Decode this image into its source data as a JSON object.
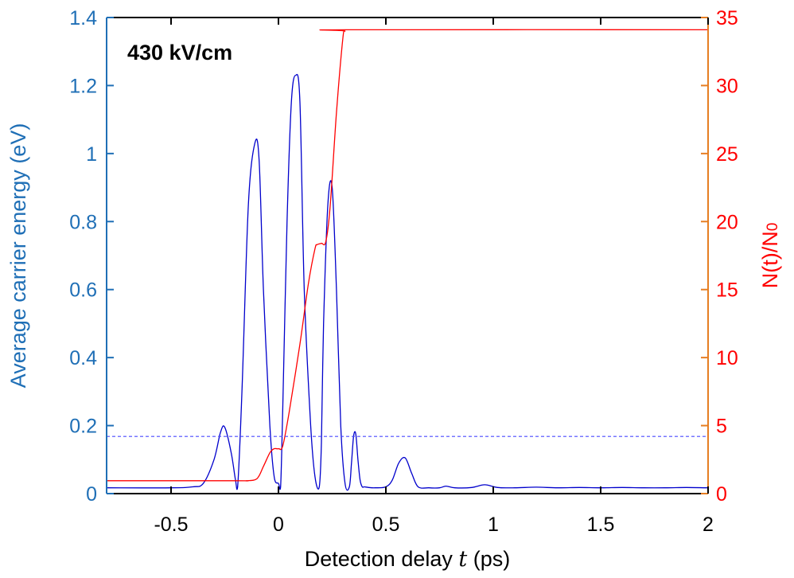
{
  "chart_data": {
    "type": "line",
    "title": "",
    "annotation": "430 kV/cm",
    "xlabel": "Detection delay t (ps)",
    "xlabel_parts": [
      "Detection delay ",
      "t",
      " (ps)"
    ],
    "ylabel_left": "Average carrier energy (eV)",
    "ylabel_right": "N(t)/N0",
    "ylabel_right_parts": [
      "N(t)/N",
      "0"
    ],
    "xlim": [
      -0.8,
      2
    ],
    "ylim_left": [
      0,
      1.4
    ],
    "ylim_right": [
      0,
      35
    ],
    "xticks": [
      -0.5,
      0,
      0.5,
      1,
      1.5,
      2
    ],
    "xtick_labels": [
      "-0.5",
      "0",
      "0.5",
      "1",
      "1.5",
      "2"
    ],
    "yticks_left": [
      0,
      0.2,
      0.4,
      0.6,
      0.8,
      1,
      1.2,
      1.4
    ],
    "ytick_labels_left": [
      "0",
      "0.2",
      "0.4",
      "0.6",
      "0.8",
      "1",
      "1.2",
      "1.4"
    ],
    "yticks_right": [
      0,
      5,
      10,
      15,
      20,
      25,
      30,
      35
    ],
    "ytick_labels_right": [
      "0",
      "5",
      "10",
      "15",
      "20",
      "25",
      "30",
      "35"
    ],
    "grid": false,
    "colors": {
      "energy": "#0000cc",
      "population": "#ff0000",
      "left_axis": "#1f6fb6",
      "right_axis": "#e67e22",
      "threshold": "#4a4aff"
    },
    "series": [
      {
        "axis": "left",
        "x": [
          -0.8,
          -0.5,
          -0.4,
          -0.35,
          -0.3,
          -0.27,
          -0.25,
          -0.22,
          -0.2,
          -0.19,
          -0.17,
          -0.14,
          -0.11,
          -0.09,
          -0.07,
          -0.04,
          -0.02,
          0.0,
          0.01,
          0.02,
          0.04,
          0.06,
          0.08,
          0.1,
          0.12,
          0.15,
          0.17,
          0.19,
          0.2,
          0.21,
          0.23,
          0.25,
          0.27,
          0.29,
          0.31,
          0.33,
          0.34,
          0.35,
          0.36,
          0.37,
          0.38,
          0.39,
          0.4,
          0.42,
          0.45,
          0.5,
          0.53,
          0.56,
          0.59,
          0.62,
          0.65,
          0.7,
          0.75,
          0.78,
          0.82,
          0.9,
          0.96,
          1.02,
          1.1,
          1.2,
          1.3,
          1.4,
          1.5,
          1.6,
          1.7,
          1.8,
          1.9,
          2.0
        ],
        "values": [
          0.017,
          0.017,
          0.02,
          0.03,
          0.1,
          0.18,
          0.195,
          0.12,
          0.04,
          0.02,
          0.3,
          0.85,
          1.03,
          0.98,
          0.6,
          0.2,
          0.05,
          0.03,
          0.02,
          0.25,
          0.8,
          1.15,
          1.23,
          1.15,
          0.6,
          0.2,
          0.05,
          0.02,
          0.15,
          0.5,
          0.85,
          0.9,
          0.6,
          0.2,
          0.03,
          0.02,
          0.09,
          0.17,
          0.175,
          0.1,
          0.04,
          0.02,
          0.02,
          0.018,
          0.017,
          0.02,
          0.04,
          0.09,
          0.105,
          0.06,
          0.02,
          0.017,
          0.017,
          0.022,
          0.017,
          0.018,
          0.026,
          0.018,
          0.017,
          0.019,
          0.017,
          0.018,
          0.017,
          0.018,
          0.017,
          0.017,
          0.018,
          0.017
        ]
      },
      {
        "axis": "right",
        "x": [
          -0.8,
          -0.2,
          -0.15,
          -0.1,
          -0.07,
          -0.04,
          -0.02,
          0.0,
          0.02,
          0.05,
          0.1,
          0.14,
          0.17,
          0.18,
          0.2,
          0.22,
          0.24,
          0.27,
          0.3,
          0.31,
          0.32,
          2.0
        ],
        "values": [
          0.95,
          0.95,
          0.95,
          1.1,
          2.0,
          3.0,
          3.3,
          3.3,
          3.5,
          6.0,
          11.0,
          15.5,
          18.0,
          18.3,
          18.4,
          18.5,
          21.0,
          28.0,
          33.5,
          34.0,
          34.1,
          34.1
        ]
      },
      {
        "axis": "left",
        "x": [
          -0.8,
          2.0
        ],
        "values": [
          0.168,
          0.168
        ]
      }
    ]
  }
}
